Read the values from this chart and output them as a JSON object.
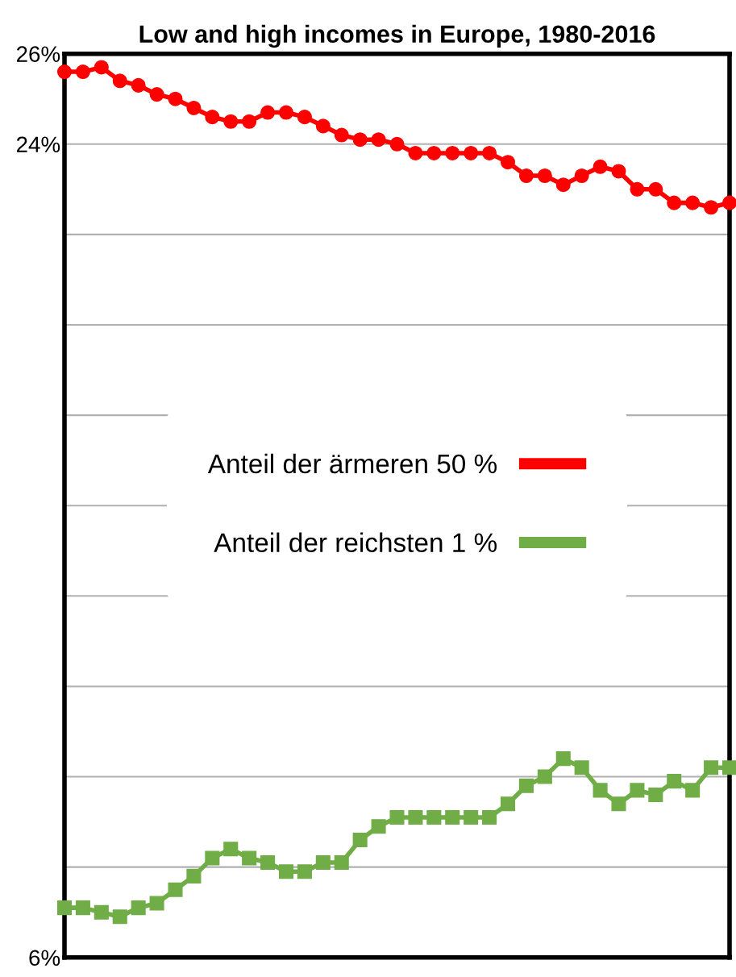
{
  "chart_data": {
    "type": "line",
    "title": "Low and high incomes in Europe, 1980-2016",
    "categories": [
      null,
      null,
      null,
      null,
      null,
      null,
      null,
      null,
      null,
      null,
      null,
      null,
      null,
      null,
      null,
      null,
      null,
      null,
      null,
      null,
      null,
      null,
      null,
      null,
      null,
      null,
      null,
      null,
      null,
      null,
      null,
      null,
      null,
      null,
      null,
      null,
      null
    ],
    "series": [
      {
        "name": "Anteil der ärmeren 50 %",
        "color": "#ff0000",
        "marker": "circle",
        "values": [
          25.6,
          25.6,
          25.7,
          25.4,
          25.3,
          25.1,
          25.0,
          24.8,
          24.6,
          24.5,
          24.5,
          24.7,
          24.7,
          24.6,
          24.4,
          24.2,
          24.1,
          24.1,
          24.0,
          23.8,
          23.8,
          23.8,
          23.8,
          23.8,
          23.6,
          23.3,
          23.3,
          23.1,
          23.3,
          23.5,
          23.4,
          23.0,
          23.0,
          22.7,
          22.7,
          22.6,
          22.7
        ]
      },
      {
        "name": "Anteil der reichsten 1 %",
        "color": "#70ad47",
        "marker": "square",
        "values": [
          7.1,
          7.1,
          7.0,
          6.9,
          7.1,
          7.2,
          7.5,
          7.8,
          8.2,
          8.4,
          8.2,
          8.1,
          7.9,
          7.9,
          8.1,
          8.1,
          8.6,
          8.9,
          9.1,
          9.1,
          9.1,
          9.1,
          9.1,
          9.1,
          9.4,
          9.8,
          10.0,
          10.4,
          10.2,
          9.7,
          9.4,
          9.7,
          9.6,
          9.9,
          9.7,
          10.2,
          10.2
        ]
      }
    ],
    "ylim": [
      6,
      26
    ],
    "yticks": [
      {
        "value": 6,
        "label": "6%"
      },
      {
        "value": 8,
        "label": null
      },
      {
        "value": 10,
        "label": null
      },
      {
        "value": 12,
        "label": null
      },
      {
        "value": 14,
        "label": null
      },
      {
        "value": 16,
        "label": null
      },
      {
        "value": 18,
        "label": null
      },
      {
        "value": 20,
        "label": null
      },
      {
        "value": 22,
        "label": null
      },
      {
        "value": 24,
        "label": "24%"
      },
      {
        "value": 26,
        "label": "26%"
      }
    ],
    "grid": "y",
    "legend": "center",
    "line_style": "solid"
  }
}
